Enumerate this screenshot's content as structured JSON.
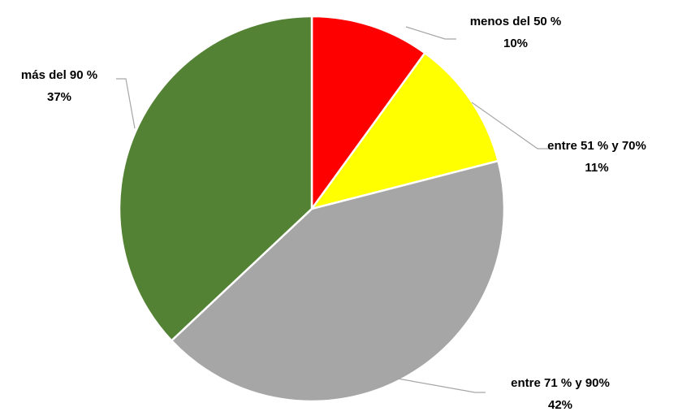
{
  "chart_data": {
    "type": "pie",
    "categories": [
      "menos del 50 %",
      "entre 51 % y 70%",
      "entre 71 % y 90%",
      "más del 90 %"
    ],
    "values": [
      10,
      11,
      42,
      37
    ],
    "value_labels": [
      "10%",
      "11%",
      "42%",
      "37%"
    ],
    "colors": [
      "#ff0000",
      "#ffff00",
      "#a6a6a6",
      "#548235"
    ]
  }
}
